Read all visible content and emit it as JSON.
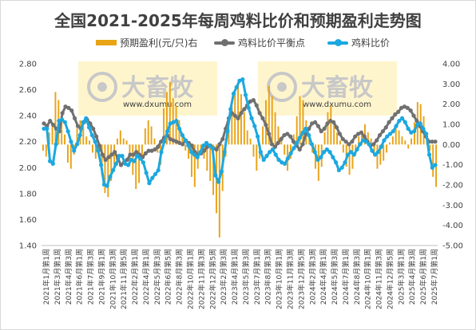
{
  "chart_data": {
    "type": "bar+line",
    "title": "全国2021-2025年每周鸡料比价和预期盈利走势图",
    "watermark": "大畜牧",
    "watermark_url": "www.dxumu.com",
    "colors": {
      "profit": "#E8A317",
      "breakeven": "#707070",
      "ratio": "#1BA8E0",
      "watermark_bg": "#FFF3C4"
    },
    "left_axis": {
      "min": 1.4,
      "max": 2.8,
      "step": 0.2,
      "ticks": [
        "1.40",
        "1.60",
        "1.80",
        "2.00",
        "2.20",
        "2.40",
        "2.60",
        "2.80"
      ]
    },
    "right_axis": {
      "min": -5.0,
      "max": 4.0,
      "step": 1.0,
      "ticks": [
        "-5.00",
        "-4.00",
        "-3.00",
        "-2.00",
        "-1.00",
        "0.00",
        "1.00",
        "2.00",
        "3.00",
        "4.00"
      ]
    },
    "x_labels": [
      "2021年1月第1周",
      "2021年3月第1周",
      "2021年4月第3周",
      "2021年6月第1周",
      "2021年7月第3周",
      "2021年9月第1周",
      "2021年10月第3周",
      "2021年11月第5周",
      "2022年2月第1周",
      "2022年4月第1周",
      "2022年5月第3周",
      "2022年6月第5周",
      "2022年8月第3周",
      "2022年10月第1周",
      "2022年11月第3周",
      "2022年12月第5周",
      "2023年2月第3周",
      "2023年4月第1周",
      "2023年5月第3周",
      "2023年7月第1周",
      "2023年8月第3周",
      "2023年10月第1周",
      "2023年11月第3周",
      "2023年12月第5周",
      "2024年2月第3周",
      "2024年4月第1周",
      "2024年5月第3周",
      "2024年7月第1周",
      "2024年8月第3周",
      "2024年10月第1周",
      "2024年11月第3周",
      "2024年12月第5周",
      "2025年3月第1周",
      "2025年4月第3周",
      "2025年6月第1周",
      "2025年7月第1周"
    ],
    "series": [
      {
        "name": "预期盈利(元/只)右",
        "type": "bar",
        "axis": "right",
        "values": [
          -0.3,
          -0.6,
          0.6,
          1.0,
          2.6,
          2.2,
          1.2,
          0.5,
          -0.9,
          -1.2,
          -0.5,
          0.8,
          1.2,
          0.9,
          0.4,
          0.2,
          -0.4,
          -0.7,
          -0.6,
          -1.5,
          -2.4,
          -2.6,
          -1.8,
          -1.2,
          0.3,
          0.7,
          0.3,
          0.2,
          -1.0,
          -1.5,
          -2.2,
          -1.9,
          -0.6,
          0.8,
          1.2,
          0.9,
          0.3,
          -0.4,
          -1.0,
          1.8,
          2.6,
          3.1,
          2.3,
          1.9,
          1.2,
          0.5,
          -0.3,
          -0.7,
          -1.6,
          -2.1,
          -1.2,
          -0.4,
          -0.7,
          -1.3,
          -1.8,
          -2.5,
          -3.4,
          -4.6,
          -2.3,
          -0.6,
          0.8,
          1.9,
          2.7,
          3.1,
          2.5,
          1.6,
          0.7,
          0.3,
          -0.6,
          -1.3,
          -0.7,
          0.9,
          2.2,
          2.9,
          2.4,
          1.6,
          0.9,
          0.4,
          -0.5,
          -1.3,
          -0.7,
          0.5,
          1.4,
          2.4,
          2.2,
          1.2,
          0.4,
          -0.4,
          -1.2,
          -1.8,
          -1.1,
          0.6,
          1.6,
          1.9,
          1.2,
          0.6,
          0.2,
          -0.4,
          -1.1,
          -1.5,
          -1.2,
          -0.5,
          0.4,
          0.7,
          1.0,
          0.6,
          0.3,
          -0.5,
          -1.2,
          -1.0,
          -0.8,
          -0.4,
          0.1,
          0.4,
          0.9,
          0.7,
          0.4,
          0.2,
          -0.2,
          0.3,
          1.1,
          2.1,
          2.0,
          1.4,
          0.6,
          -0.3,
          -1.6,
          -2.1
        ]
      },
      {
        "name": "鸡料比价平衡点",
        "type": "line",
        "axis": "left",
        "values": [
          2.34,
          2.32,
          2.36,
          2.33,
          2.3,
          2.28,
          2.42,
          2.47,
          2.46,
          2.44,
          2.38,
          2.32,
          2.3,
          2.35,
          2.37,
          2.34,
          2.3,
          2.24,
          2.17,
          2.1,
          2.06,
          2.08,
          2.1,
          2.12,
          2.07,
          2.02,
          2.04,
          2.06,
          2.1,
          2.1,
          2.12,
          2.1,
          2.08,
          2.11,
          2.13,
          2.13,
          2.14,
          2.16,
          2.2,
          2.23,
          2.25,
          2.22,
          2.21,
          2.2,
          2.19,
          2.18,
          2.21,
          2.19,
          2.17,
          2.12,
          2.1,
          2.11,
          2.13,
          2.16,
          2.17,
          2.15,
          2.14,
          2.18,
          2.22,
          2.3,
          2.38,
          2.42,
          2.4,
          2.38,
          2.42,
          2.45,
          2.48,
          2.51,
          2.52,
          2.48,
          2.42,
          2.38,
          2.33,
          2.26,
          2.18,
          2.16,
          2.19,
          2.22,
          2.25,
          2.26,
          2.24,
          2.2,
          2.17,
          2.14,
          2.18,
          2.26,
          2.3,
          2.34,
          2.35,
          2.32,
          2.28,
          2.3,
          2.34,
          2.36,
          2.35,
          2.31,
          2.26,
          2.22,
          2.2,
          2.18,
          2.2,
          2.24,
          2.26,
          2.27,
          2.24,
          2.2,
          2.17,
          2.18,
          2.21,
          2.25,
          2.28,
          2.31,
          2.35,
          2.38,
          2.41,
          2.43,
          2.46,
          2.47,
          2.46,
          2.44,
          2.4,
          2.36,
          2.32,
          2.28,
          2.24,
          2.2,
          2.2,
          2.2
        ]
      },
      {
        "name": "鸡料比价",
        "type": "line",
        "axis": "left",
        "values": [
          2.3,
          2.3,
          2.05,
          2.03,
          2.18,
          2.36,
          2.37,
          2.35,
          2.28,
          2.2,
          2.13,
          2.18,
          2.25,
          2.35,
          2.38,
          2.31,
          2.25,
          2.2,
          2.13,
          2.02,
          1.87,
          1.86,
          1.93,
          1.98,
          2.03,
          2.09,
          2.09,
          2.03,
          2.02,
          2.06,
          2.05,
          2.09,
          2.07,
          2.04,
          1.96,
          1.88,
          1.92,
          1.95,
          1.98,
          2.12,
          2.2,
          2.28,
          2.34,
          2.35,
          2.36,
          2.3,
          2.25,
          2.21,
          2.17,
          2.12,
          2.1,
          2.08,
          2.12,
          2.17,
          2.19,
          2.17,
          2.15,
          1.94,
          1.89,
          1.97,
          2.12,
          2.28,
          2.45,
          2.57,
          2.62,
          2.67,
          2.68,
          2.56,
          2.46,
          2.38,
          2.32,
          2.24,
          2.12,
          2.06,
          2.09,
          2.12,
          2.14,
          2.1,
          2.06,
          2.04,
          2.03,
          2.07,
          2.11,
          2.15,
          2.19,
          2.23,
          2.27,
          2.3,
          2.25,
          2.18,
          2.12,
          2.06,
          2.08,
          2.12,
          2.14,
          2.12,
          2.08,
          2.04,
          1.98,
          2.0,
          2.04,
          2.1,
          2.12,
          2.1,
          2.14,
          2.18,
          2.21,
          2.2,
          2.18,
          2.13,
          2.1,
          2.12,
          2.16,
          2.21,
          2.24,
          2.26,
          2.28,
          2.32,
          2.36,
          2.38,
          2.35,
          2.3,
          2.27,
          2.28,
          2.33,
          2.34,
          2.3,
          2.26,
          2.1,
          2.0,
          2.02
        ]
      }
    ]
  }
}
